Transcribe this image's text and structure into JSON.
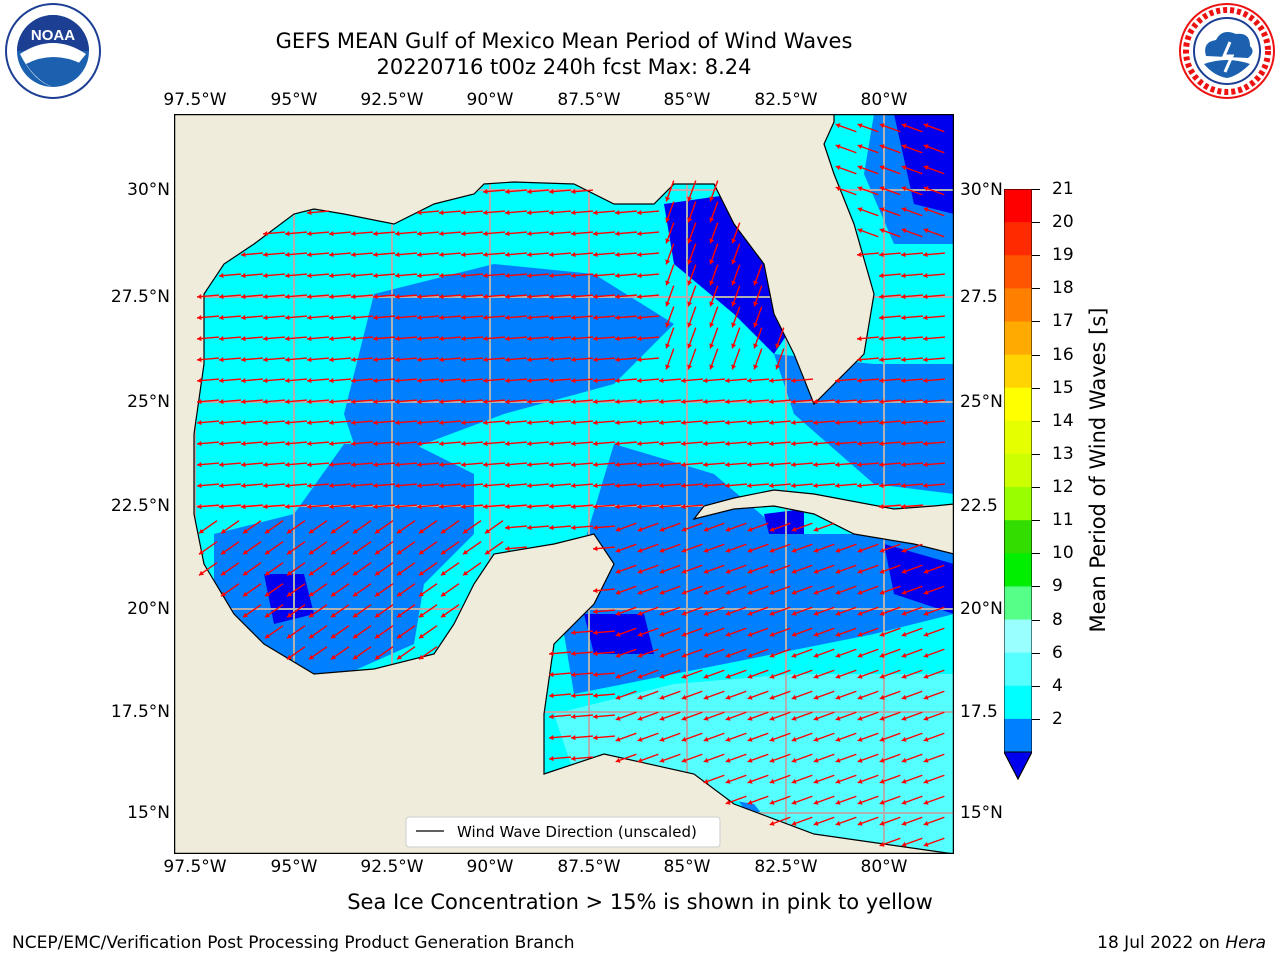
{
  "title": {
    "line1": "GEFS MEAN Gulf of Mexico Mean Period of Wind Waves",
    "line2": "20220716 t00z 240h fcst   Max: 8.24"
  },
  "axes": {
    "lon_labels": [
      "97.5°W",
      "95°W",
      "92.5°W",
      "90°W",
      "87.5°W",
      "85°W",
      "82.5°W",
      "80°W"
    ],
    "lat_labels_left": [
      "30°N",
      "27.5°N",
      "25°N",
      "22.5°N",
      "20°N",
      "17.5°N",
      "15°N"
    ],
    "lat_labels_right": [
      "30°N",
      "27.5",
      "25°N",
      "22.5",
      "20°N",
      "17.5",
      "15°N"
    ]
  },
  "legend": {
    "label": "Wind Wave Direction (unscaled)"
  },
  "colorbar": {
    "title": "Mean Period of Wind Waves [s]",
    "ticks": [
      "21",
      "20",
      "19",
      "18",
      "17",
      "16",
      "15",
      "14",
      "13",
      "12",
      "11",
      "10",
      "9",
      "8",
      "6",
      "4",
      "2"
    ],
    "colors": [
      "#ff0000",
      "#ff2a00",
      "#ff5500",
      "#ff8000",
      "#ffaa00",
      "#ffd400",
      "#ffff00",
      "#e6ff00",
      "#ccff00",
      "#99ff00",
      "#33dd00",
      "#00ee00",
      "#55ff88",
      "#99ffff",
      "#55ffff",
      "#00ffff",
      "#0080ff"
    ],
    "extend_color": "#0000ee"
  },
  "map_colors": {
    "land": "#efecdc",
    "ocean_low": "#0000ee",
    "band_2_4": "#0080ff",
    "band_4_6": "#00ffff",
    "band_6_8": "#55ffff",
    "arrow": "#ff0000",
    "grid": "#b0b0b0"
  },
  "note": "Sea Ice Concentration > 15% is shown in pink to yellow",
  "footer": {
    "left": "NCEP/EMC/Verification Post Processing Product Generation Branch",
    "right_prefix": "18 Jul 2022 on ",
    "right_host": "Hera"
  },
  "logos": {
    "noaa_text": "NOAA",
    "noaa_ring": "NATIONAL OCEANIC AND ATMOSPHERIC ADMINISTRATION · U.S. DEPARTMENT OF COMMERCE",
    "nws_ring": "NATIONAL WEATHER SERVICE"
  }
}
